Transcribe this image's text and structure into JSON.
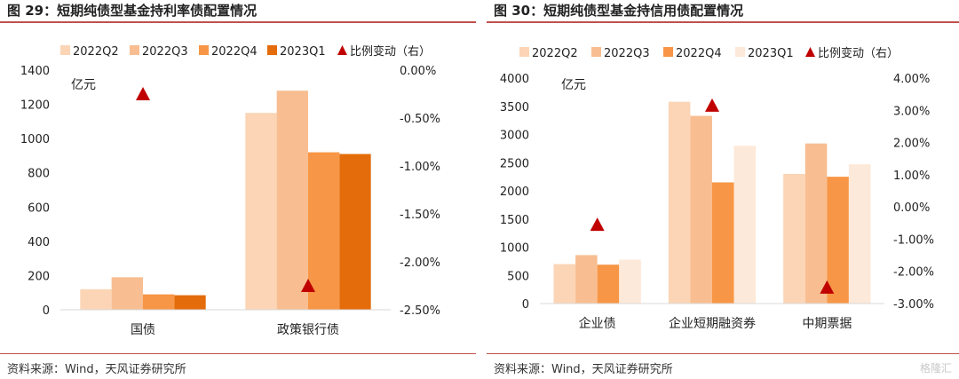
{
  "panels": [
    {
      "title": "图 29：短期纯债型基金持利率债配置情况",
      "source": "资料来源：Wind，天风证券研究所",
      "unit_label": "亿元",
      "legend_labels": [
        "2022Q2",
        "2022Q3",
        "2022Q4",
        "2023Q1",
        "比例变动（右）"
      ],
      "colors": [
        "#fbd5b5",
        "#f8be91",
        "#f79646",
        "#e46c0a"
      ],
      "marker_color": "#c00000"
    },
    {
      "title": "图 30：短期纯债型基金持信用债配置情况",
      "source": "资料来源：Wind，天风证券研究所",
      "unit_label": "亿元",
      "legend_labels": [
        "2022Q2",
        "2022Q3",
        "2022Q4",
        "2023Q1",
        "比例变动（右）"
      ],
      "colors": [
        "#fbd5b5",
        "#f8be91",
        "#f79646",
        "#fde9d9"
      ],
      "marker_color": "#c00000"
    }
  ],
  "watermark": "格隆汇",
  "chart_data": [
    {
      "type": "bar",
      "categories": [
        "国债",
        "政策银行债"
      ],
      "series": [
        {
          "name": "2022Q2",
          "values": [
            120,
            1150
          ]
        },
        {
          "name": "2022Q3",
          "values": [
            190,
            1280
          ]
        },
        {
          "name": "2022Q4",
          "values": [
            90,
            920
          ]
        },
        {
          "name": "2023Q1",
          "values": [
            85,
            910
          ]
        }
      ],
      "secondary": {
        "name": "比例变动（右）",
        "type": "scatter-triangle",
        "values": [
          -0.25,
          -2.25
        ]
      },
      "ylim": [
        0,
        1400
      ],
      "yticks": [
        0,
        200,
        400,
        600,
        800,
        1000,
        1200,
        1400
      ],
      "ytick_labels": [
        "0",
        "200",
        "400",
        "600",
        "800",
        "1000",
        "1200",
        "1400"
      ],
      "y2lim": [
        -2.5,
        0
      ],
      "y2ticks": [
        -2.5,
        -2.0,
        -1.5,
        -1.0,
        -0.5,
        0
      ],
      "y2tick_labels": [
        "-2.50%",
        "-2.00%",
        "-1.50%",
        "-1.00%",
        "-0.50%",
        "0.00%"
      ],
      "legend": "top"
    },
    {
      "type": "bar",
      "categories": [
        "企业债",
        "企业短期融资券",
        "中期票据"
      ],
      "series": [
        {
          "name": "2022Q2",
          "values": [
            700,
            3580,
            2300
          ]
        },
        {
          "name": "2022Q3",
          "values": [
            860,
            3330,
            2840
          ]
        },
        {
          "name": "2022Q4",
          "values": [
            690,
            2150,
            2250
          ]
        },
        {
          "name": "2023Q1",
          "values": [
            780,
            2800,
            2470
          ]
        }
      ],
      "secondary": {
        "name": "比例变动（右）",
        "type": "scatter-triangle",
        "values": [
          -0.55,
          3.15,
          -2.5
        ]
      },
      "ylim": [
        0,
        4000
      ],
      "yticks": [
        0,
        500,
        1000,
        1500,
        2000,
        2500,
        3000,
        3500,
        4000
      ],
      "ytick_labels": [
        "0",
        "500",
        "1000",
        "1500",
        "2000",
        "2500",
        "3000",
        "3500",
        "4000"
      ],
      "y2lim": [
        -3,
        4
      ],
      "y2ticks": [
        -3,
        -2,
        -1,
        0,
        1,
        2,
        3,
        4
      ],
      "y2tick_labels": [
        "-3.00%",
        "-2.00%",
        "-1.00%",
        "0.00%",
        "1.00%",
        "2.00%",
        "3.00%",
        "4.00%"
      ],
      "legend": "top"
    }
  ]
}
